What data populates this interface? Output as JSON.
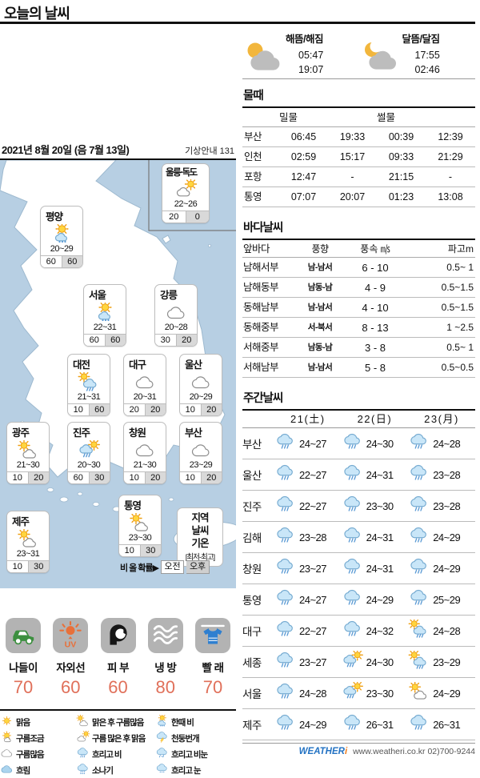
{
  "header": {
    "title": "오늘의 날씨"
  },
  "left": {
    "date_line": "2021년 8월 20일 (음 7월 13일)",
    "weather_info": "기상안내 131",
    "map_cities": [
      {
        "name": "울릉·독도",
        "icon": "cloud-sun",
        "temp": "22~26",
        "am": "20",
        "pm": "0"
      },
      {
        "name": "평양",
        "icon": "sun-drizzle",
        "temp": "20~29",
        "am": "60",
        "pm": "60"
      },
      {
        "name": "서울",
        "icon": "sun-drizzle",
        "temp": "22~31",
        "am": "60",
        "pm": "60"
      },
      {
        "name": "강릉",
        "icon": "cloudy",
        "temp": "20~28",
        "am": "30",
        "pm": "20"
      },
      {
        "name": "대전",
        "icon": "sun-rain",
        "temp": "21~31",
        "am": "10",
        "pm": "60"
      },
      {
        "name": "대구",
        "icon": "cloudy",
        "temp": "20~31",
        "am": "20",
        "pm": "20"
      },
      {
        "name": "울산",
        "icon": "cloudy",
        "temp": "20~29",
        "am": "10",
        "pm": "20"
      },
      {
        "name": "광주",
        "icon": "sun-cloud",
        "temp": "21~30",
        "am": "10",
        "pm": "20"
      },
      {
        "name": "진주",
        "icon": "rain-sun",
        "temp": "20~30",
        "am": "60",
        "pm": "30"
      },
      {
        "name": "창원",
        "icon": "cloudy",
        "temp": "21~30",
        "am": "10",
        "pm": "20"
      },
      {
        "name": "부산",
        "icon": "cloudy",
        "temp": "23~29",
        "am": "10",
        "pm": "20"
      },
      {
        "name": "통영",
        "icon": "sun-cloud",
        "temp": "23~30",
        "am": "10",
        "pm": "30"
      },
      {
        "name": "제주",
        "icon": "sun-cloud",
        "temp": "23~31",
        "am": "10",
        "pm": "30"
      }
    ],
    "map_key": {
      "lines": [
        "지역",
        "날씨",
        "기온"
      ],
      "range_note": "[최저-최고]"
    },
    "prob_note": {
      "label": "비 올 확률▶",
      "am": "오전",
      "pm": "오후"
    },
    "life_index": [
      {
        "label": "나들이",
        "value": "70",
        "icon": "car"
      },
      {
        "label": "자외선",
        "value": "60",
        "icon": "uv"
      },
      {
        "label": "피 부",
        "value": "60",
        "icon": "face"
      },
      {
        "label": "냉 방",
        "value": "80",
        "icon": "waves"
      },
      {
        "label": "빨 래",
        "value": "70",
        "icon": "shirt"
      }
    ],
    "legend_cols": [
      [
        {
          "icon": "sun",
          "label": "맑음"
        },
        {
          "icon": "sun-smallcloud",
          "label": "구름조금"
        },
        {
          "icon": "cloudy",
          "label": "구름많음"
        },
        {
          "icon": "cloud-blue",
          "label": "흐림"
        }
      ],
      [
        {
          "icon": "sun-cloud",
          "label": "맑은 후 구름많음"
        },
        {
          "icon": "cloud-sun",
          "label": "구름 많은 후 맑음"
        },
        {
          "icon": "rain",
          "label": "흐리고 비"
        },
        {
          "icon": "shower",
          "label": "소나기"
        }
      ],
      [
        {
          "icon": "sun-drizzle",
          "label": "한때 비"
        },
        {
          "icon": "thunder",
          "label": "천둥번개"
        },
        {
          "icon": "rain-snow",
          "label": "흐리고 비눈"
        },
        {
          "icon": "snow",
          "label": "흐리고 눈"
        }
      ]
    ]
  },
  "right": {
    "sun": {
      "label": "해뜸/해짐",
      "rise": "05:47",
      "set": "19:07"
    },
    "moon": {
      "label": "달뜸/달짐",
      "rise": "17:55",
      "set": "02:46"
    },
    "tide": {
      "title": "물때",
      "col_high": "밀물",
      "col_low": "썰물",
      "rows": [
        {
          "city": "부산",
          "high": [
            "06:45",
            "19:33"
          ],
          "low": [
            "00:39",
            "12:39"
          ]
        },
        {
          "city": "인천",
          "high": [
            "02:59",
            "15:17"
          ],
          "low": [
            "09:33",
            "21:29"
          ]
        },
        {
          "city": "포항",
          "high": [
            "12:47",
            "-"
          ],
          "low": [
            "21:15",
            "-"
          ]
        },
        {
          "city": "통영",
          "high": [
            "07:07",
            "20:07"
          ],
          "low": [
            "01:23",
            "13:08"
          ]
        }
      ]
    },
    "sea": {
      "title": "바다날씨",
      "headers": [
        "앞바다",
        "풍향",
        "풍속 ㎧",
        "파고m"
      ],
      "rows": [
        {
          "area": "남해서부",
          "dir": "남-남서",
          "speed": "6 - 10",
          "wave": "0.5~ 1"
        },
        {
          "area": "남해동부",
          "dir": "남동-남",
          "speed": "4 - 9",
          "wave": "0.5~1.5"
        },
        {
          "area": "동해남부",
          "dir": "남-남서",
          "speed": "4 - 10",
          "wave": "0.5~1.5"
        },
        {
          "area": "동해중부",
          "dir": "서-북서",
          "speed": "8 - 13",
          "wave": "1 ~2.5"
        },
        {
          "area": "서해중부",
          "dir": "남동-남",
          "speed": "3 - 8",
          "wave": "0.5~ 1"
        },
        {
          "area": "서해남부",
          "dir": "남-남서",
          "speed": "5 - 8",
          "wave": "0.5~0.5"
        }
      ]
    },
    "weekly": {
      "title": "주간날씨",
      "days": [
        "21(土)",
        "22(日)",
        "23(月)"
      ],
      "rows": [
        {
          "city": "부산",
          "f": [
            {
              "icon": "rain",
              "t": "24~27"
            },
            {
              "icon": "rain",
              "t": "24~30"
            },
            {
              "icon": "rain",
              "t": "24~28"
            }
          ]
        },
        {
          "city": "울산",
          "f": [
            {
              "icon": "rain",
              "t": "22~27"
            },
            {
              "icon": "rain",
              "t": "24~31"
            },
            {
              "icon": "rain",
              "t": "23~28"
            }
          ]
        },
        {
          "city": "진주",
          "f": [
            {
              "icon": "rain",
              "t": "22~27"
            },
            {
              "icon": "rain",
              "t": "23~30"
            },
            {
              "icon": "rain",
              "t": "23~28"
            }
          ]
        },
        {
          "city": "김해",
          "f": [
            {
              "icon": "rain",
              "t": "23~28"
            },
            {
              "icon": "rain",
              "t": "24~31"
            },
            {
              "icon": "rain",
              "t": "24~29"
            }
          ]
        },
        {
          "city": "창원",
          "f": [
            {
              "icon": "rain",
              "t": "23~27"
            },
            {
              "icon": "rain",
              "t": "24~31"
            },
            {
              "icon": "rain",
              "t": "24~29"
            }
          ]
        },
        {
          "city": "통영",
          "f": [
            {
              "icon": "rain",
              "t": "24~27"
            },
            {
              "icon": "rain",
              "t": "24~29"
            },
            {
              "icon": "rain",
              "t": "25~29"
            }
          ]
        },
        {
          "city": "대구",
          "f": [
            {
              "icon": "rain",
              "t": "22~27"
            },
            {
              "icon": "rain",
              "t": "24~32"
            },
            {
              "icon": "sun-rain",
              "t": "24~28"
            }
          ]
        },
        {
          "city": "세종",
          "f": [
            {
              "icon": "rain",
              "t": "23~27"
            },
            {
              "icon": "rain-sun",
              "t": "24~30"
            },
            {
              "icon": "sun-rain",
              "t": "23~29"
            }
          ]
        },
        {
          "city": "서울",
          "f": [
            {
              "icon": "rain",
              "t": "24~28"
            },
            {
              "icon": "rain-sun",
              "t": "23~30"
            },
            {
              "icon": "sun-cloud",
              "t": "24~29"
            }
          ]
        },
        {
          "city": "제주",
          "f": [
            {
              "icon": "rain",
              "t": "24~29"
            },
            {
              "icon": "rain",
              "t": "26~31"
            },
            {
              "icon": "rain",
              "t": "26~31"
            }
          ]
        }
      ]
    },
    "footer": {
      "logo_main": "WEATHER",
      "logo_i": "i",
      "contact": "www.weatheri.co.kr 02)700-9244"
    }
  },
  "colors": {
    "sea": "#b7cfe3",
    "accent_value": "#e0705a",
    "prob_pm_bg": "#d9d9d9",
    "logo_blue": "#2272c3",
    "logo_orange": "#f08020",
    "sun_fill": "#ffd53e",
    "rain_cloud": "#c9e6f8"
  }
}
